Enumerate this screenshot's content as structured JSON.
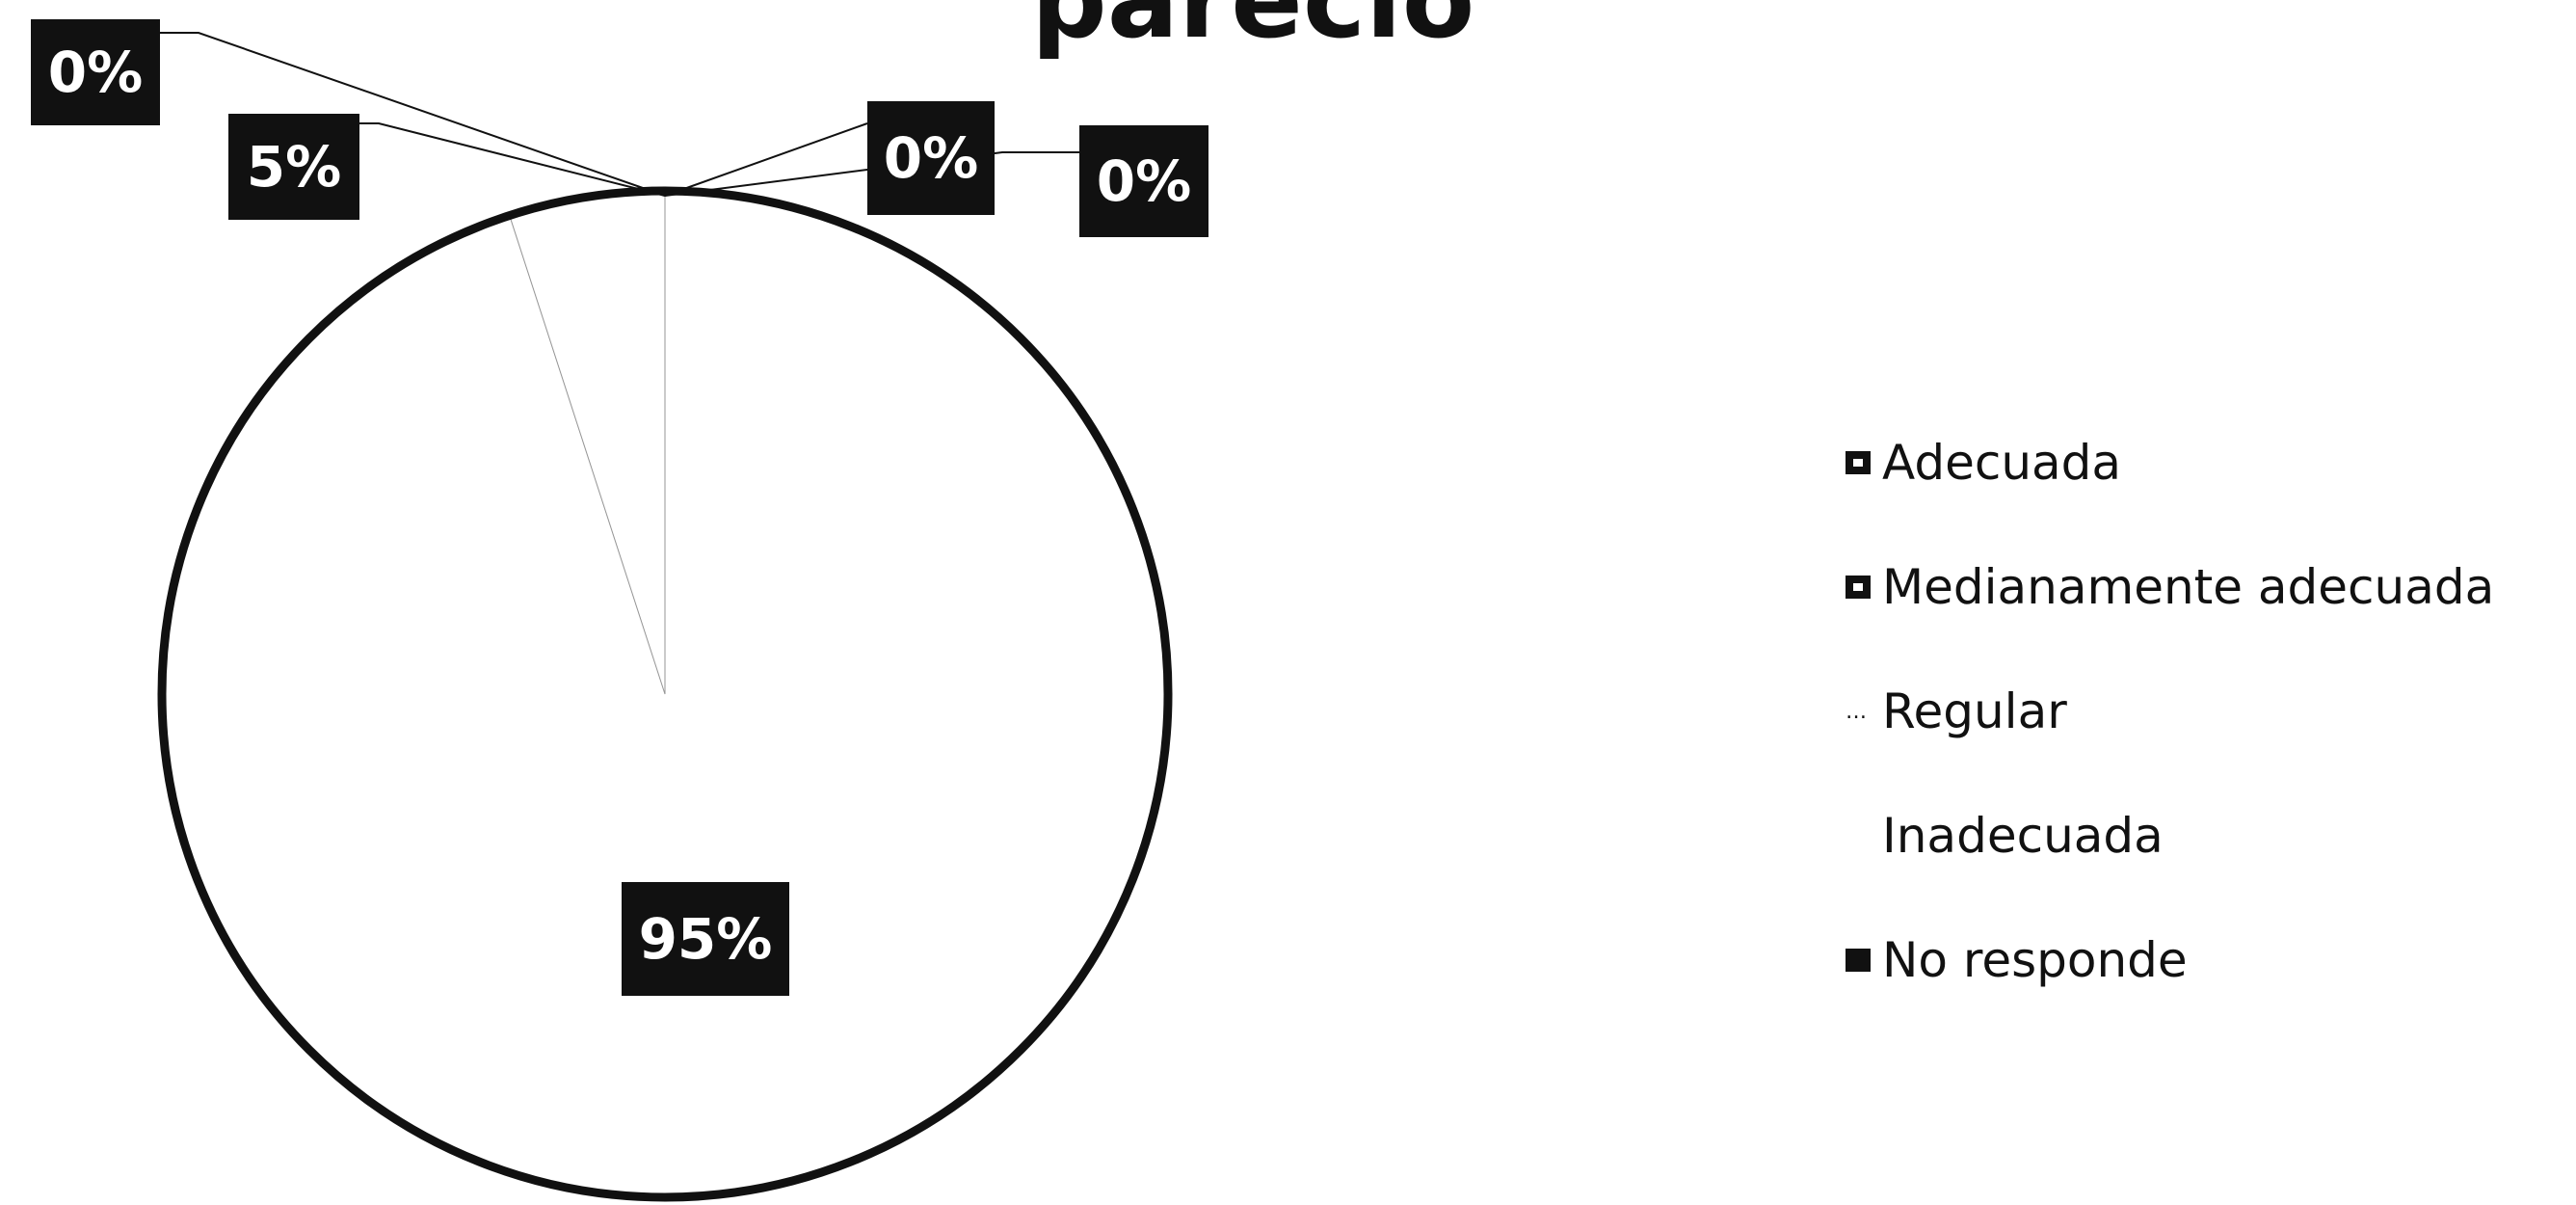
{
  "chart_data": {
    "type": "pie",
    "title": "pareció",
    "categories": [
      "Adecuada",
      "Medianamente adecuada",
      "Regular",
      "Inadecuada",
      "No responde"
    ],
    "values": [
      0,
      0,
      95,
      0,
      5
    ],
    "data_labels": [
      "0%",
      "0%",
      "95%",
      "0%",
      "5%"
    ],
    "legend_position": "right",
    "colors": {
      "fill": "#ffffff",
      "outline": "#111111",
      "label_bg": "#111111",
      "label_text": "#ffffff"
    }
  },
  "legend": {
    "items": [
      {
        "label": "Adecuada",
        "marker": "hollow-square"
      },
      {
        "label": "Medianamente adecuada",
        "marker": "hollow-square"
      },
      {
        "label": "Regular",
        "marker": "dots"
      },
      {
        "label": "Inadecuada",
        "marker": "none"
      },
      {
        "label": "No responde",
        "marker": "filled-square"
      }
    ]
  }
}
